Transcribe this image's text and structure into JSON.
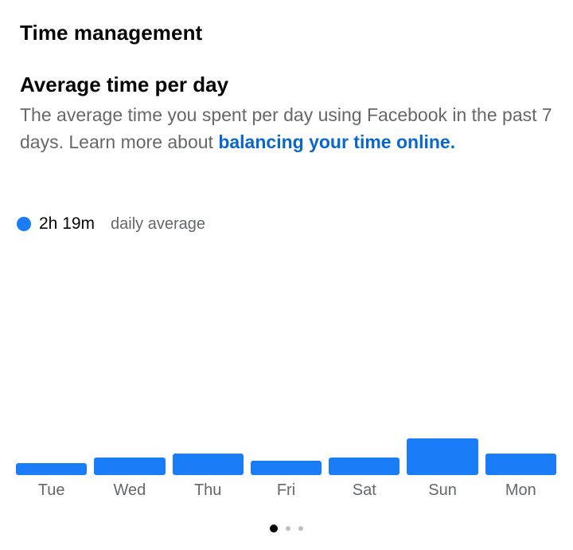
{
  "header": {
    "title": "Time management"
  },
  "card": {
    "title": "Average time per day",
    "description_text": "The average time you spent per day using Facebook in the past 7 days. Learn more about ",
    "description_link": "balancing your time online."
  },
  "legend": {
    "value": "2h 19m",
    "label": "daily average",
    "color": "#1b7cf7"
  },
  "chart_data": {
    "type": "bar",
    "categories": [
      "Tue",
      "Wed",
      "Thu",
      "Fri",
      "Sat",
      "Sun",
      "Mon"
    ],
    "values": [
      14,
      20,
      25,
      16,
      20,
      42,
      25
    ],
    "ylim": [
      0,
      270
    ],
    "color": "#1b7cf7",
    "grid": false
  },
  "pager": {
    "count": 3,
    "active_index": 0
  }
}
